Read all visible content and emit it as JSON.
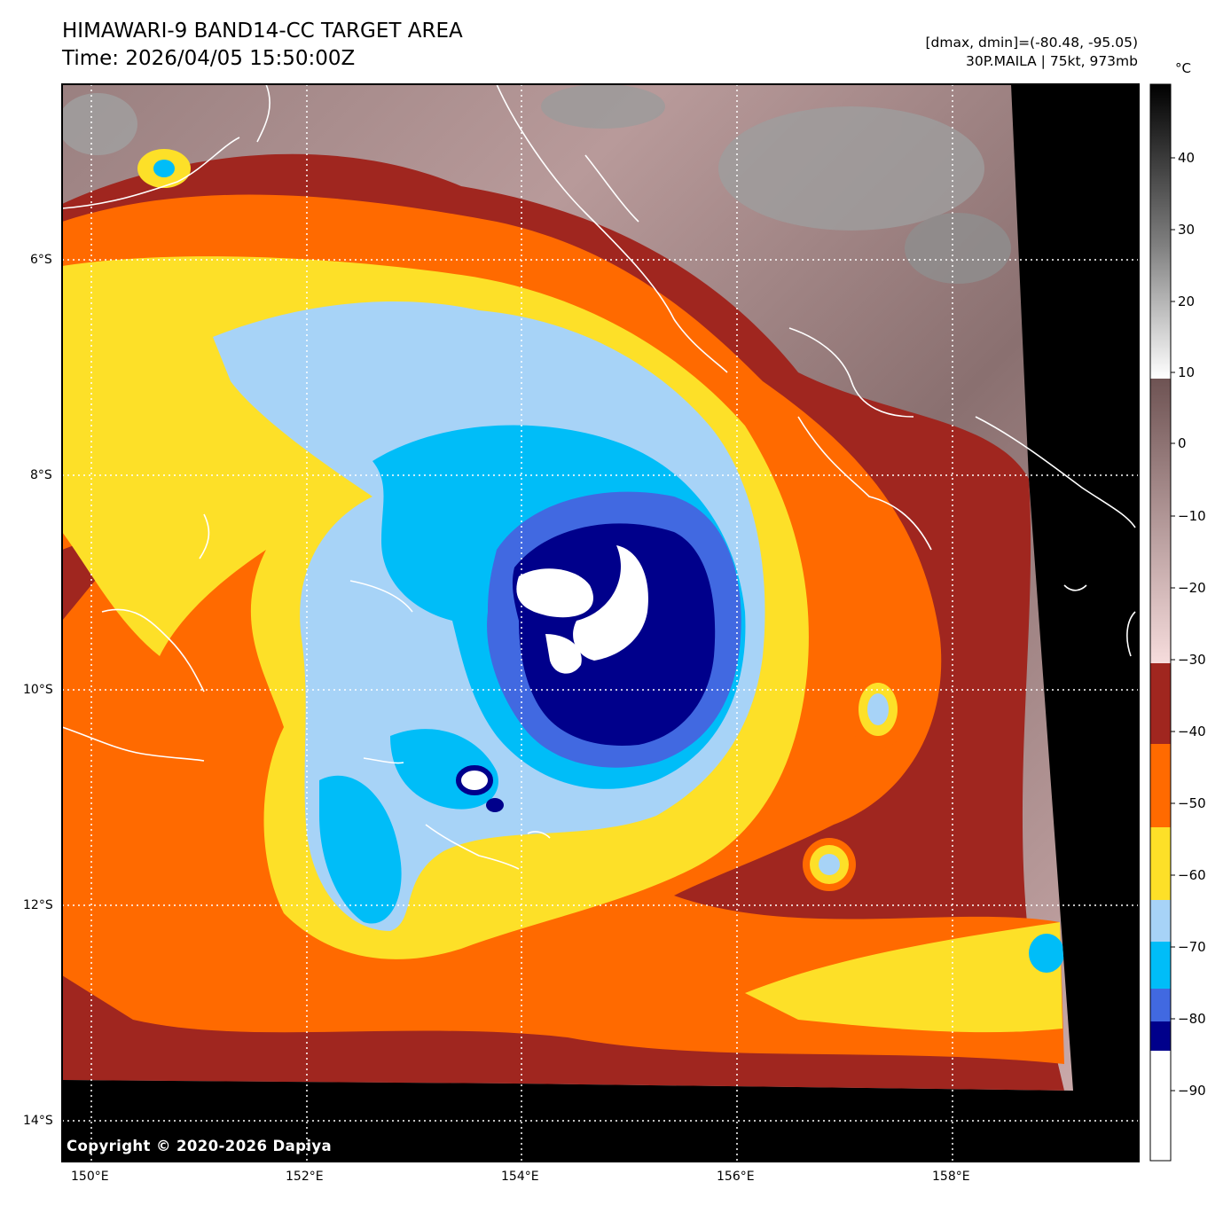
{
  "header": {
    "title": "HIMAWARI-9 BAND14-CC TARGET AREA",
    "time": "Time: 2026/04/05 15:50:00Z",
    "range_text": "[dmax, dmin]=(-80.48, -95.05)",
    "storm_text": "30P.MAILA | 75kt, 973mb"
  },
  "map": {
    "lat_ticks": [
      "6°S",
      "8°S",
      "10°S",
      "12°S",
      "14°S"
    ],
    "lon_ticks": [
      "150°E",
      "152°E",
      "154°E",
      "156°E",
      "158°E"
    ],
    "copyright": "Copyright © 2020-2026 Dapiya",
    "no_data_color": "#000000",
    "coastline_color": "#ffffff",
    "grid_color": "#ffffff"
  },
  "colorbar": {
    "unit": "°C",
    "ticks": [
      "40",
      "30",
      "20",
      "10",
      "0",
      "−10",
      "−20",
      "−30",
      "−40",
      "−50",
      "−60",
      "−70",
      "−80",
      "−90"
    ],
    "bands": [
      {
        "from": -30,
        "to": -40,
        "color": "#a0261f"
      },
      {
        "from": -40,
        "to": -50,
        "color": "#ff6a00"
      },
      {
        "from": -50,
        "to": -60,
        "color": "#fde028"
      },
      {
        "from": -60,
        "to": -65,
        "color": "#a7d3f7"
      },
      {
        "from": -65,
        "to": -72,
        "color": "#00bdf8"
      },
      {
        "from": -72,
        "to": -77,
        "color": "#4169e1"
      },
      {
        "from": -77,
        "to": -81,
        "color": "#00008b"
      },
      {
        "from": -81,
        "to": -100,
        "color": "#ffffff"
      }
    ]
  }
}
